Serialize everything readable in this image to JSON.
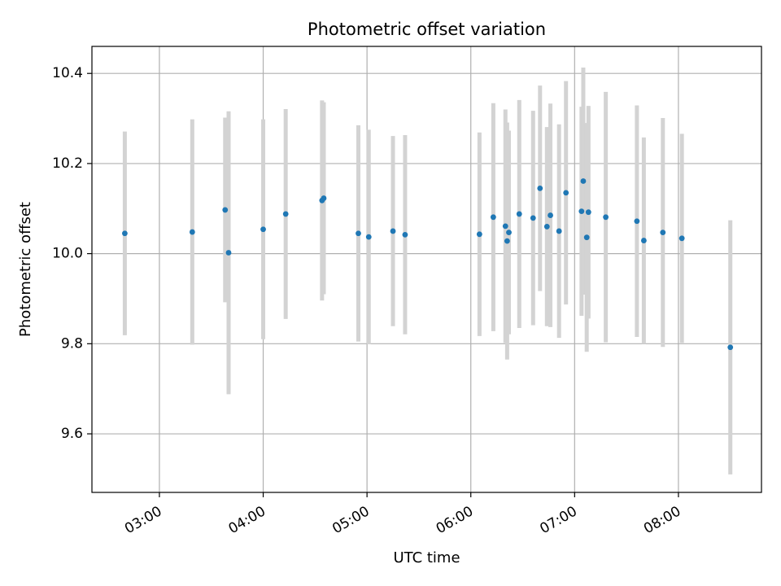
{
  "chart_data": {
    "type": "scatter",
    "title": "Photometric offset variation",
    "xlabel": "UTC time",
    "ylabel": "Photometric offset",
    "xlim": [
      "02:21",
      "08:48"
    ],
    "ylim": [
      9.47,
      10.46
    ],
    "grid": true,
    "x_ticks": [
      "03:00",
      "04:00",
      "05:00",
      "06:00",
      "07:00",
      "08:00"
    ],
    "y_ticks": [
      9.6,
      9.8,
      10.0,
      10.2,
      10.4
    ],
    "y_tick_labels": [
      "9.6",
      "9.8",
      "10.0",
      "10.2",
      "10.4"
    ],
    "colors": {
      "point": "#1f77b4",
      "errorbar": "#d3d3d3",
      "grid": "#b0b0b0"
    },
    "points": [
      {
        "x": "02:40",
        "y": 10.045,
        "yerr": 0.226
      },
      {
        "x": "03:19",
        "y": 10.048,
        "yerr": 0.25
      },
      {
        "x": "03:38",
        "y": 10.097,
        "yerr": 0.205
      },
      {
        "x": "03:40",
        "y": 10.002,
        "yerr": 0.314
      },
      {
        "x": "04:00",
        "y": 10.054,
        "yerr": 0.244
      },
      {
        "x": "04:13",
        "y": 10.088,
        "yerr": 0.233
      },
      {
        "x": "04:34",
        "y": 10.118,
        "yerr": 0.222
      },
      {
        "x": "04:35",
        "y": 10.123,
        "yerr": 0.213
      },
      {
        "x": "04:55",
        "y": 10.045,
        "yerr": 0.24
      },
      {
        "x": "05:01",
        "y": 10.037,
        "yerr": 0.238
      },
      {
        "x": "05:15",
        "y": 10.05,
        "yerr": 0.211
      },
      {
        "x": "05:22",
        "y": 10.042,
        "yerr": 0.221
      },
      {
        "x": "06:05",
        "y": 10.043,
        "yerr": 0.226
      },
      {
        "x": "06:13",
        "y": 10.081,
        "yerr": 0.253
      },
      {
        "x": "06:20",
        "y": 10.061,
        "yerr": 0.259
      },
      {
        "x": "06:21",
        "y": 10.028,
        "yerr": 0.263
      },
      {
        "x": "06:22",
        "y": 10.047,
        "yerr": 0.226
      },
      {
        "x": "06:28",
        "y": 10.088,
        "yerr": 0.253
      },
      {
        "x": "06:36",
        "y": 10.079,
        "yerr": 0.238
      },
      {
        "x": "06:40",
        "y": 10.145,
        "yerr": 0.228
      },
      {
        "x": "06:44",
        "y": 10.06,
        "yerr": 0.221
      },
      {
        "x": "06:46",
        "y": 10.085,
        "yerr": 0.248
      },
      {
        "x": "06:51",
        "y": 10.05,
        "yerr": 0.237
      },
      {
        "x": "06:55",
        "y": 10.135,
        "yerr": 0.248
      },
      {
        "x": "07:04",
        "y": 10.094,
        "yerr": 0.232
      },
      {
        "x": "07:05",
        "y": 10.161,
        "yerr": 0.252
      },
      {
        "x": "07:07",
        "y": 10.036,
        "yerr": 0.254
      },
      {
        "x": "07:08",
        "y": 10.092,
        "yerr": 0.236
      },
      {
        "x": "07:18",
        "y": 10.081,
        "yerr": 0.278
      },
      {
        "x": "07:36",
        "y": 10.072,
        "yerr": 0.257
      },
      {
        "x": "07:40",
        "y": 10.029,
        "yerr": 0.229
      },
      {
        "x": "07:51",
        "y": 10.047,
        "yerr": 0.254
      },
      {
        "x": "08:02",
        "y": 10.034,
        "yerr": 0.232
      },
      {
        "x": "08:30",
        "y": 9.792,
        "yerr": 0.282
      }
    ]
  }
}
